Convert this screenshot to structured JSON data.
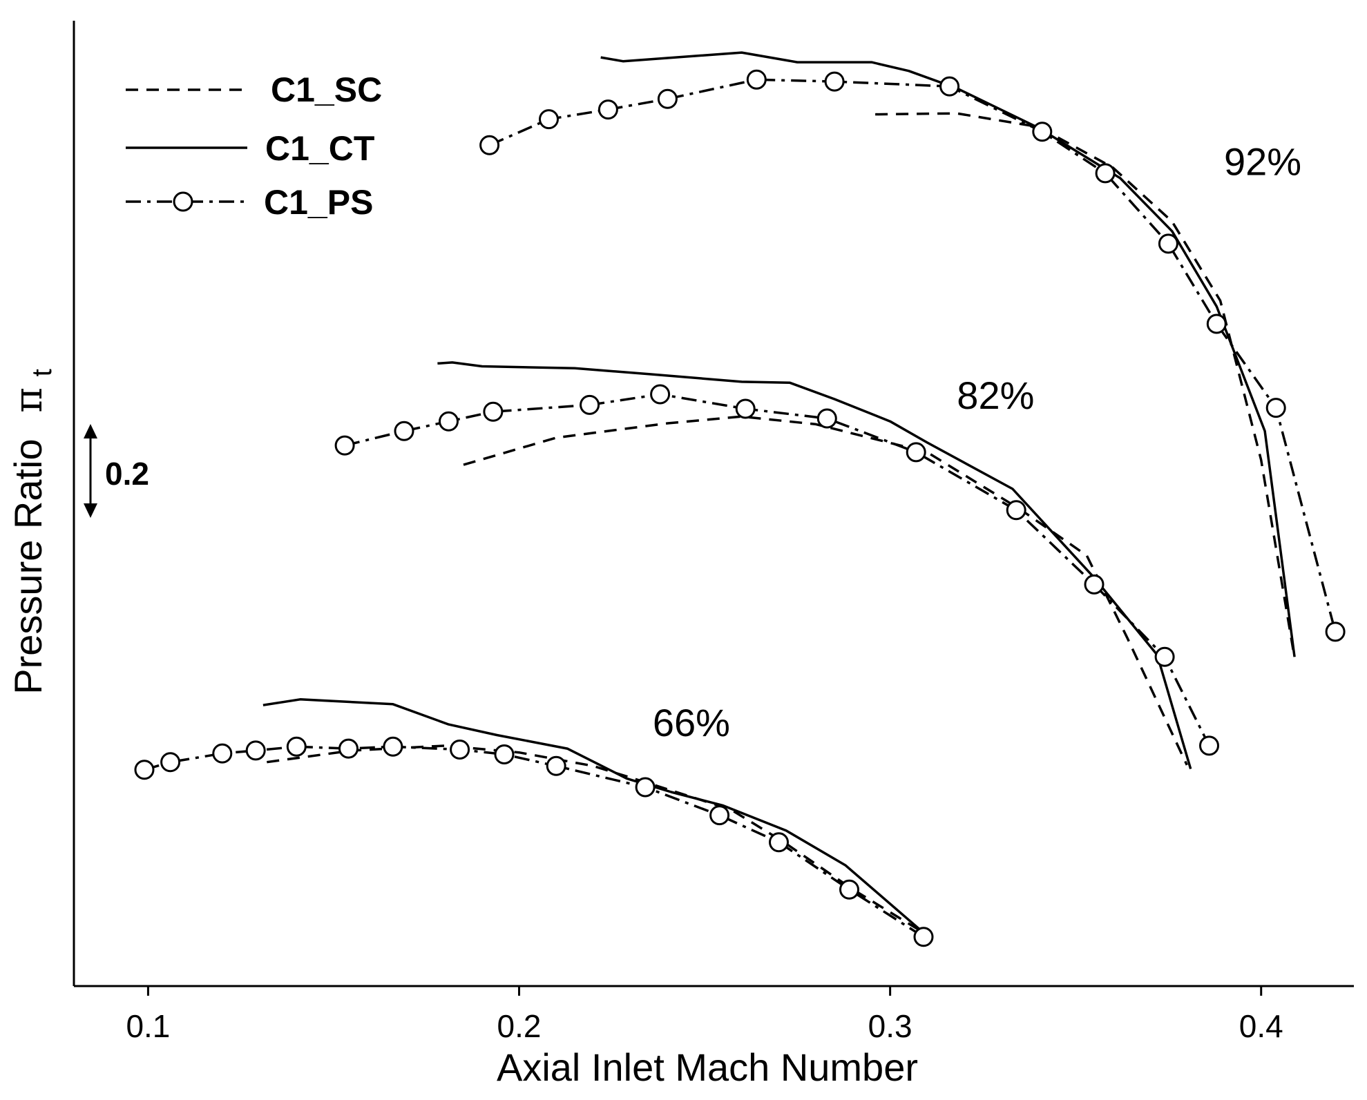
{
  "chart_data": {
    "type": "line",
    "xlabel": "Axial Inlet Mach Number",
    "ylabel": "Pressure Ratio",
    "ylabel_symbol": "π",
    "ylabel_subscript": "t",
    "xlim": [
      0.08,
      0.425
    ],
    "ylim": [
      0,
      1.0
    ],
    "y_axis_ticks": "none (relative scale)",
    "xticks": [
      0.1,
      0.2,
      0.3,
      0.4
    ],
    "xtick_labels": [
      "0.1",
      "0.2",
      "0.3",
      "0.4"
    ],
    "scale_bar": {
      "label": "0.2",
      "value": 0.2
    },
    "legend": [
      {
        "name": "C1_SC",
        "style": "dashed"
      },
      {
        "name": "C1_CT",
        "style": "solid"
      },
      {
        "name": "C1_PS",
        "style": "dash-dot with circle markers"
      }
    ],
    "speed_lines": [
      {
        "label": "92%",
        "label_at": [
          0.39,
          0.84
        ],
        "series": [
          {
            "name": "C1_SC",
            "x": [
              0.296,
              0.318,
              0.34,
              0.36,
              0.376,
              0.389,
              0.4,
              0.409
            ],
            "y": [
              0.903,
              0.904,
              0.89,
              0.848,
              0.792,
              0.71,
              0.545,
              0.34
            ]
          },
          {
            "name": "C1_CT",
            "x": [
              0.222,
              0.228,
              0.26,
              0.275,
              0.295,
              0.305,
              0.318,
              0.34,
              0.362,
              0.376,
              0.388,
              0.401,
              0.409
            ],
            "y": [
              0.962,
              0.958,
              0.967,
              0.957,
              0.957,
              0.948,
              0.93,
              0.889,
              0.837,
              0.782,
              0.704,
              0.575,
              0.341
            ]
          },
          {
            "name": "C1_PS",
            "x": [
              0.192,
              0.208,
              0.224,
              0.24,
              0.264,
              0.285,
              0.316,
              0.341,
              0.358,
              0.375,
              0.388,
              0.404,
              0.42
            ],
            "y": [
              0.871,
              0.898,
              0.908,
              0.919,
              0.939,
              0.937,
              0.932,
              0.885,
              0.842,
              0.769,
              0.686,
              0.599,
              0.367
            ]
          }
        ]
      },
      {
        "label": "82%",
        "label_at": [
          0.318,
          0.598
        ],
        "series": [
          {
            "name": "C1_SC",
            "x": [
              0.185,
              0.21,
              0.24,
              0.26,
              0.28,
              0.31,
              0.335,
              0.353,
              0.364,
              0.38
            ],
            "y": [
              0.54,
              0.568,
              0.583,
              0.59,
              0.582,
              0.553,
              0.494,
              0.446,
              0.36,
              0.229
            ]
          },
          {
            "name": "C1_CT",
            "x": [
              0.178,
              0.182,
              0.19,
              0.215,
              0.235,
              0.26,
              0.273,
              0.285,
              0.3,
              0.31,
              0.333,
              0.355,
              0.372,
              0.381
            ],
            "y": [
              0.645,
              0.646,
              0.642,
              0.64,
              0.634,
              0.626,
              0.625,
              0.608,
              0.585,
              0.563,
              0.515,
              0.423,
              0.343,
              0.225
            ]
          },
          {
            "name": "C1_PS",
            "x": [
              0.153,
              0.169,
              0.181,
              0.193,
              0.219,
              0.238,
              0.261,
              0.283,
              0.307,
              0.334,
              0.355,
              0.374,
              0.386
            ],
            "y": [
              0.56,
              0.575,
              0.585,
              0.595,
              0.602,
              0.613,
              0.598,
              0.588,
              0.553,
              0.493,
              0.416,
              0.341,
              0.249
            ]
          }
        ]
      },
      {
        "label": "66%",
        "label_at": [
          0.236,
          0.259
        ],
        "series": [
          {
            "name": "C1_SC",
            "x": [
              0.132,
              0.155,
              0.18,
              0.2,
              0.22,
              0.235,
              0.257,
              0.271,
              0.29,
              0.31
            ],
            "y": [
              0.232,
              0.244,
              0.249,
              0.242,
              0.228,
              0.21,
              0.183,
              0.15,
              0.1,
              0.053
            ]
          },
          {
            "name": "C1_CT",
            "x": [
              0.131,
              0.141,
              0.166,
              0.181,
              0.194,
              0.213,
              0.229,
              0.241,
              0.255,
              0.272,
              0.288,
              0.31
            ],
            "y": [
              0.291,
              0.297,
              0.292,
              0.271,
              0.26,
              0.246,
              0.215,
              0.201,
              0.187,
              0.161,
              0.125,
              0.052
            ]
          },
          {
            "name": "C1_PS",
            "x": [
              0.099,
              0.106,
              0.12,
              0.129,
              0.14,
              0.154,
              0.166,
              0.184,
              0.196,
              0.21,
              0.234,
              0.254,
              0.27,
              0.289,
              0.309
            ],
            "y": [
              0.224,
              0.232,
              0.241,
              0.244,
              0.248,
              0.246,
              0.248,
              0.245,
              0.24,
              0.228,
              0.206,
              0.177,
              0.149,
              0.1,
              0.051
            ]
          }
        ]
      }
    ]
  }
}
